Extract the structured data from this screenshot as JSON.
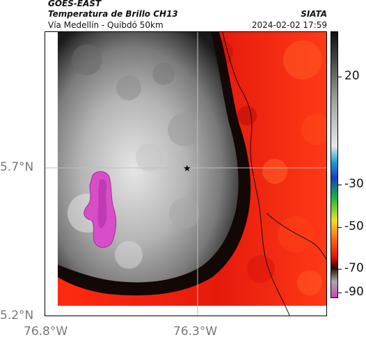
{
  "header": {
    "satellite": "GOES-EAST",
    "product": "Temperatura de Brillo CH13",
    "region": "Vía Medellín - Quibdó 50km",
    "agency": "SIATA",
    "datetime": "2024-02-02 17:59"
  },
  "chart_data": {
    "type": "heatmap",
    "title": "Temperatura de Brillo CH13",
    "x_ticks": [
      "76.8°W",
      "76.3°W"
    ],
    "y_ticks": [
      "5.7°N",
      "5.2°N"
    ],
    "colorbar_ticks": [
      "20",
      "-30",
      "-50",
      "-70",
      "-90"
    ],
    "colorbar_values": [
      20,
      -30,
      -50,
      -70,
      -90
    ],
    "marker": "star",
    "colors": {
      "warm": "#e02010",
      "cloud": "#a0a0a0",
      "cold": "#d040c0",
      "land": "#000000"
    }
  }
}
